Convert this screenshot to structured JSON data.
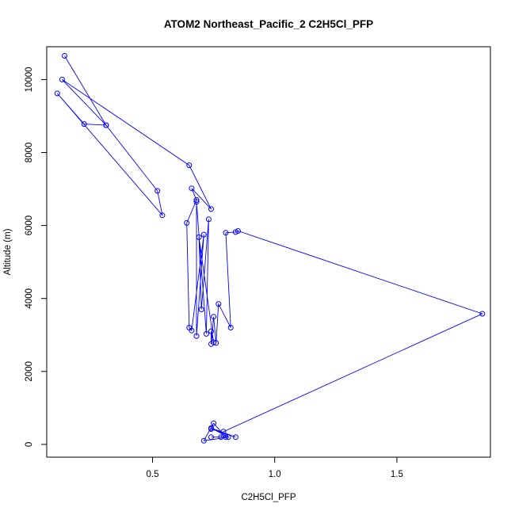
{
  "chart_data": {
    "type": "line",
    "title": "ATOM2 Northeast_Pacific_2 C2H5Cl_PFP",
    "xlabel": "C2H5Cl_PFP",
    "ylabel": "Altitude (m)",
    "xlim": [
      0.067,
      1.883
    ],
    "ylim": [
      -350,
      10900
    ],
    "xticks": [
      0.5,
      1.0,
      1.5
    ],
    "xtick_labels": [
      "0.5",
      "1.0",
      "1.5"
    ],
    "yticks": [
      0,
      2000,
      4000,
      6000,
      8000,
      10000
    ],
    "ytick_labels": [
      "0",
      "2000",
      "4000",
      "6000",
      "8000",
      "10000"
    ],
    "grid": false,
    "markers": "open-circle",
    "series": [
      {
        "color": "#0000ff",
        "points": [
          [
            0.14,
            10650
          ],
          [
            0.31,
            8750
          ],
          [
            0.52,
            6950
          ],
          [
            0.54,
            6280
          ],
          [
            0.11,
            9620
          ],
          [
            0.22,
            8780
          ],
          [
            0.31,
            8750
          ],
          [
            0.13,
            10000
          ],
          [
            0.65,
            7650
          ],
          [
            0.74,
            6450
          ],
          [
            0.66,
            7020
          ],
          [
            0.68,
            6700
          ],
          [
            0.64,
            6070
          ],
          [
            0.65,
            3200
          ],
          [
            0.66,
            3120
          ],
          [
            0.71,
            5750
          ],
          [
            0.68,
            2970
          ],
          [
            0.68,
            6650
          ],
          [
            0.72,
            3030
          ],
          [
            0.73,
            6170
          ],
          [
            0.7,
            3700
          ],
          [
            0.69,
            5680
          ],
          [
            0.75,
            2800
          ],
          [
            0.74,
            3100
          ],
          [
            0.74,
            2750
          ],
          [
            0.75,
            3500
          ],
          [
            0.76,
            2780
          ],
          [
            0.77,
            3850
          ],
          [
            0.82,
            3200
          ],
          [
            0.8,
            5800
          ],
          [
            0.84,
            5820
          ],
          [
            0.85,
            5850
          ],
          [
            1.85,
            3580
          ],
          [
            0.79,
            350
          ],
          [
            0.78,
            200
          ],
          [
            0.74,
            200
          ],
          [
            0.8,
            200
          ],
          [
            0.75,
            580
          ],
          [
            0.71,
            100
          ],
          [
            0.81,
            200
          ],
          [
            0.74,
            450
          ],
          [
            0.84,
            200
          ],
          [
            0.74,
            420
          ]
        ]
      }
    ]
  }
}
